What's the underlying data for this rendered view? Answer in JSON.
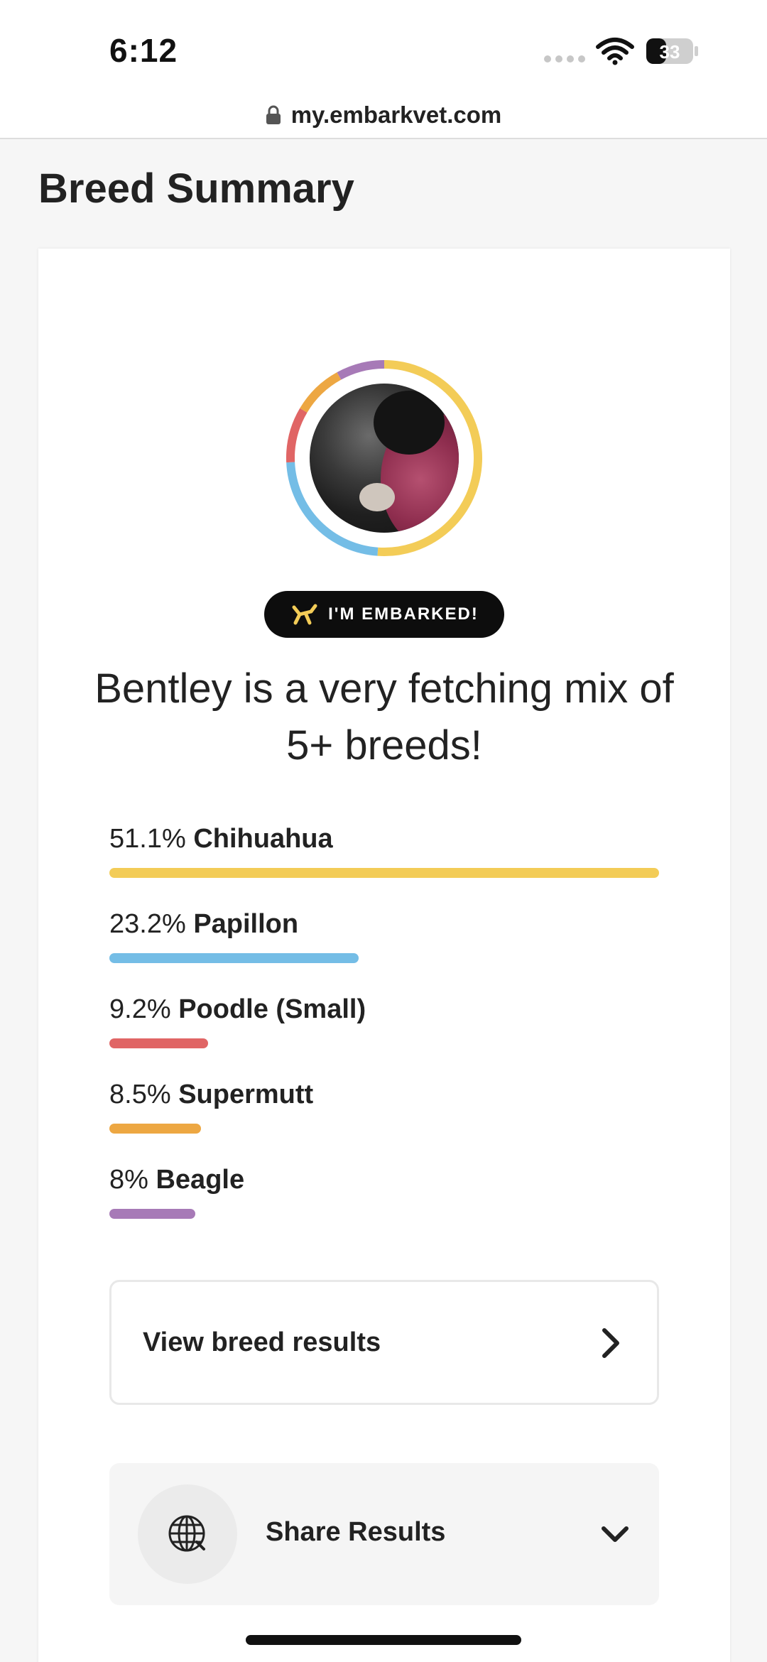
{
  "status_bar": {
    "time": "6:12",
    "battery_level": "33"
  },
  "browser": {
    "url": "my.embarkvet.com"
  },
  "page": {
    "title": "Breed Summary"
  },
  "profile": {
    "photo_alt": "dog-photo"
  },
  "badge": {
    "label": "I'M EMBARKED!"
  },
  "headline": "Bentley is a very fetching mix of 5+ breeds!",
  "breeds": [
    {
      "percent": "51.1%",
      "name": "Chihuahua",
      "value": 51.1,
      "color": "#f3cc57"
    },
    {
      "percent": "23.2%",
      "name": "Papillon",
      "value": 23.2,
      "color": "#74bde6"
    },
    {
      "percent": "9.2%",
      "name": "Poodle (Small)",
      "value": 9.2,
      "color": "#e06565"
    },
    {
      "percent": "8.5%",
      "name": "Supermutt",
      "value": 8.5,
      "color": "#eda742"
    },
    {
      "percent": "8%",
      "name": "Beagle",
      "value": 8,
      "color": "#a77ab7"
    }
  ],
  "actions": {
    "view_results_label": "View breed results",
    "share_label": "Share Results"
  },
  "icons": {
    "lock": "lock-icon",
    "wifi": "wifi-icon",
    "battery": "battery-icon",
    "badge": "embark-dog-icon",
    "chevron_right": "chevron-right-icon",
    "globe": "globe-icon",
    "chevron_down": "chevron-down-icon"
  }
}
